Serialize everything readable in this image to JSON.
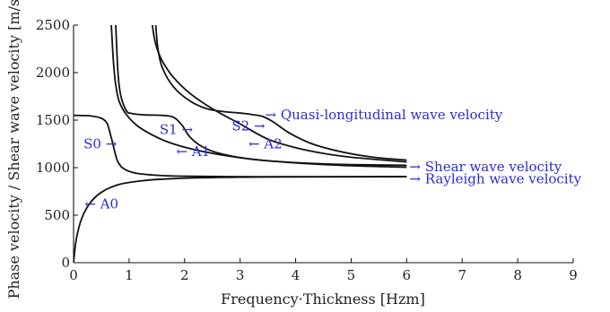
{
  "chart_data": {
    "type": "line",
    "title": "",
    "xlabel": "Frequency·Thickness [Hzm]",
    "ylabel": "Phase velocity / Shear wave velocity [m/s]",
    "xlim": [
      0,
      9
    ],
    "ylim": [
      0,
      2500
    ],
    "x_ticks": [
      "0",
      "1",
      "2",
      "3",
      "4",
      "5",
      "6",
      "7",
      "8",
      "9"
    ],
    "y_ticks": [
      "0",
      "500",
      "1000",
      "1500",
      "2000",
      "2500"
    ],
    "grid": false,
    "series": [
      {
        "id": "A0",
        "x": [
          0.0,
          0.05,
          0.15,
          0.3,
          0.5,
          0.8,
          1.2,
          1.8,
          3,
          4,
          6
        ],
        "y": [
          0,
          250,
          470,
          630,
          740,
          820,
          860,
          885,
          900,
          903,
          905
        ]
      },
      {
        "id": "S0",
        "x": [
          0.0,
          0.3,
          0.5,
          0.6,
          0.65,
          0.7,
          0.75,
          0.8,
          0.9,
          1.1,
          1.5,
          2,
          3,
          4,
          6
        ],
        "y": [
          1550,
          1545,
          1520,
          1470,
          1380,
          1270,
          1150,
          1060,
          990,
          945,
          920,
          910,
          905,
          904,
          905
        ]
      },
      {
        "id": "A1",
        "x": [
          0.68,
          0.72,
          0.76,
          0.82,
          0.95,
          1.15,
          1.4,
          1.7,
          2.1,
          2.6,
          3.2,
          4,
          5,
          6
        ],
        "y": [
          2500,
          2100,
          1870,
          1700,
          1560,
          1440,
          1350,
          1270,
          1200,
          1140,
          1090,
          1050,
          1020,
          1005
        ]
      },
      {
        "id": "S1",
        "x": [
          0.76,
          0.8,
          0.85,
          0.95,
          1.05,
          1.3,
          1.6,
          1.8,
          1.95,
          2.1,
          2.35,
          2.7,
          3.2,
          3.8,
          4.5,
          5.2,
          6
        ],
        "y": [
          2500,
          2000,
          1760,
          1600,
          1570,
          1555,
          1550,
          1530,
          1450,
          1320,
          1210,
          1140,
          1090,
          1060,
          1040,
          1030,
          1025
        ]
      },
      {
        "id": "A2",
        "x": [
          1.42,
          1.45,
          1.5,
          1.6,
          1.8,
          2.1,
          2.5,
          3,
          3.5,
          4,
          4.5,
          5,
          6
        ],
        "y": [
          2500,
          2380,
          2260,
          2120,
          1950,
          1780,
          1620,
          1460,
          1300,
          1210,
          1150,
          1110,
          1060
        ]
      },
      {
        "id": "S2",
        "x": [
          1.48,
          1.52,
          1.6,
          1.8,
          2.1,
          2.4,
          2.7,
          3.0,
          3.2,
          3.4,
          3.6,
          3.9,
          4.3,
          4.8,
          5.4,
          6
        ],
        "y": [
          2500,
          2250,
          2050,
          1850,
          1700,
          1620,
          1590,
          1575,
          1560,
          1540,
          1480,
          1360,
          1250,
          1170,
          1110,
          1080
        ]
      }
    ],
    "annotations": [
      {
        "name": "a0-label",
        "text": "← A0",
        "x": 0.2,
        "y": 620,
        "anchor": "start"
      },
      {
        "name": "s0-label",
        "text": "S0 →",
        "x": 0.78,
        "y": 1250,
        "anchor": "end"
      },
      {
        "name": "s1-label",
        "text": "S1 →",
        "x": 2.15,
        "y": 1400,
        "anchor": "end"
      },
      {
        "name": "a1-label",
        "text": "← A1",
        "x": 1.85,
        "y": 1170,
        "anchor": "start"
      },
      {
        "name": "s2-label",
        "text": "S2 →",
        "x": 3.45,
        "y": 1440,
        "anchor": "end"
      },
      {
        "name": "a2-label",
        "text": "← A2",
        "x": 3.15,
        "y": 1250,
        "anchor": "start"
      },
      {
        "name": "quasi-longitudinal-label",
        "text": "→ Quasi-longitudinal wave velocity",
        "x": 3.45,
        "y": 1555,
        "anchor": "start"
      },
      {
        "name": "shear-wave-label",
        "text": "→ Shear wave velocity",
        "x": 6.05,
        "y": 1010,
        "anchor": "start"
      },
      {
        "name": "rayleigh-wave-label",
        "text": "→ Rayleigh wave velocity",
        "x": 6.05,
        "y": 880,
        "anchor": "start"
      }
    ]
  }
}
